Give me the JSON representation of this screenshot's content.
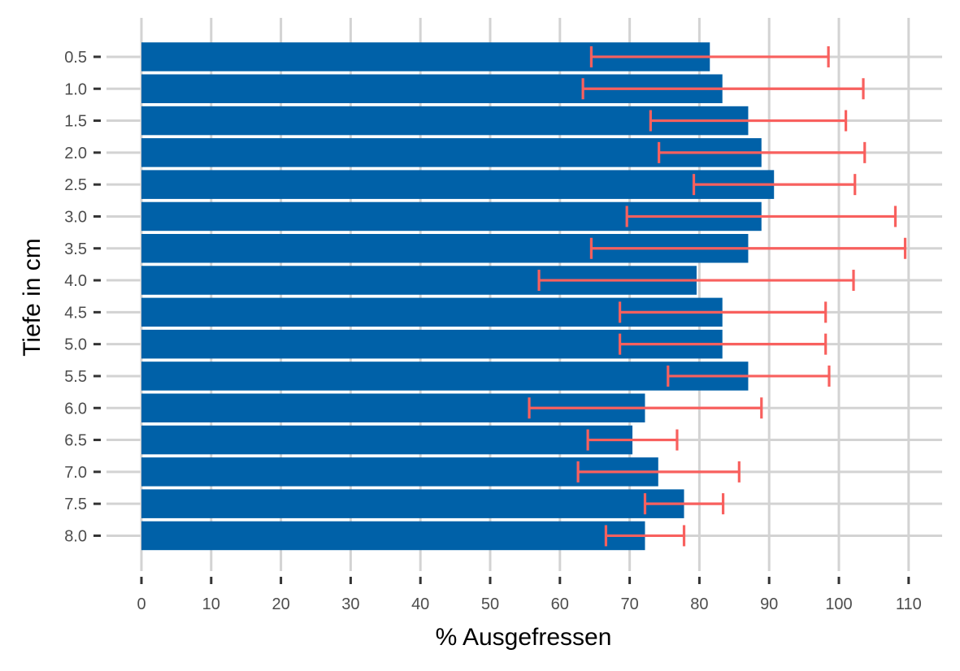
{
  "colors": {
    "bar": "#0061A8",
    "error_bar": "#F8605E",
    "grid": "#D3D3D3",
    "background": "#FFFFFF"
  },
  "chart_data": {
    "type": "bar",
    "orientation": "horizontal",
    "xlabel": "% Ausgefressen",
    "ylabel": "Tiefe in cm",
    "xlim": [
      0,
      115
    ],
    "x_ticks": [
      0,
      10,
      20,
      30,
      40,
      50,
      60,
      70,
      80,
      90,
      100,
      110
    ],
    "x_tick_labels": [
      "0",
      "10",
      "20",
      "30",
      "40",
      "50",
      "60",
      "70",
      "80",
      "90",
      "100",
      "110"
    ],
    "grid": true,
    "legend": "none",
    "categories": [
      "0.5",
      "1.0",
      "1.5",
      "2.0",
      "2.5",
      "3.0",
      "3.5",
      "4.0",
      "4.5",
      "5.0",
      "5.5",
      "6.0",
      "6.5",
      "7.0",
      "7.5",
      "8.0"
    ],
    "values": [
      81.5,
      83.3,
      87.0,
      88.9,
      90.7,
      88.9,
      87.0,
      79.6,
      83.3,
      83.3,
      87.0,
      72.2,
      70.4,
      74.1,
      77.8,
      72.2
    ],
    "error_low": [
      64.5,
      63.3,
      73.0,
      74.2,
      79.2,
      69.6,
      64.5,
      57.0,
      68.6,
      68.6,
      75.5,
      55.6,
      64.0,
      62.6,
      72.2,
      66.6
    ],
    "error_high": [
      98.5,
      103.5,
      101.0,
      103.7,
      102.3,
      108.1,
      109.5,
      102.1,
      98.1,
      98.1,
      98.6,
      88.9,
      76.8,
      85.7,
      83.4,
      77.8
    ]
  }
}
